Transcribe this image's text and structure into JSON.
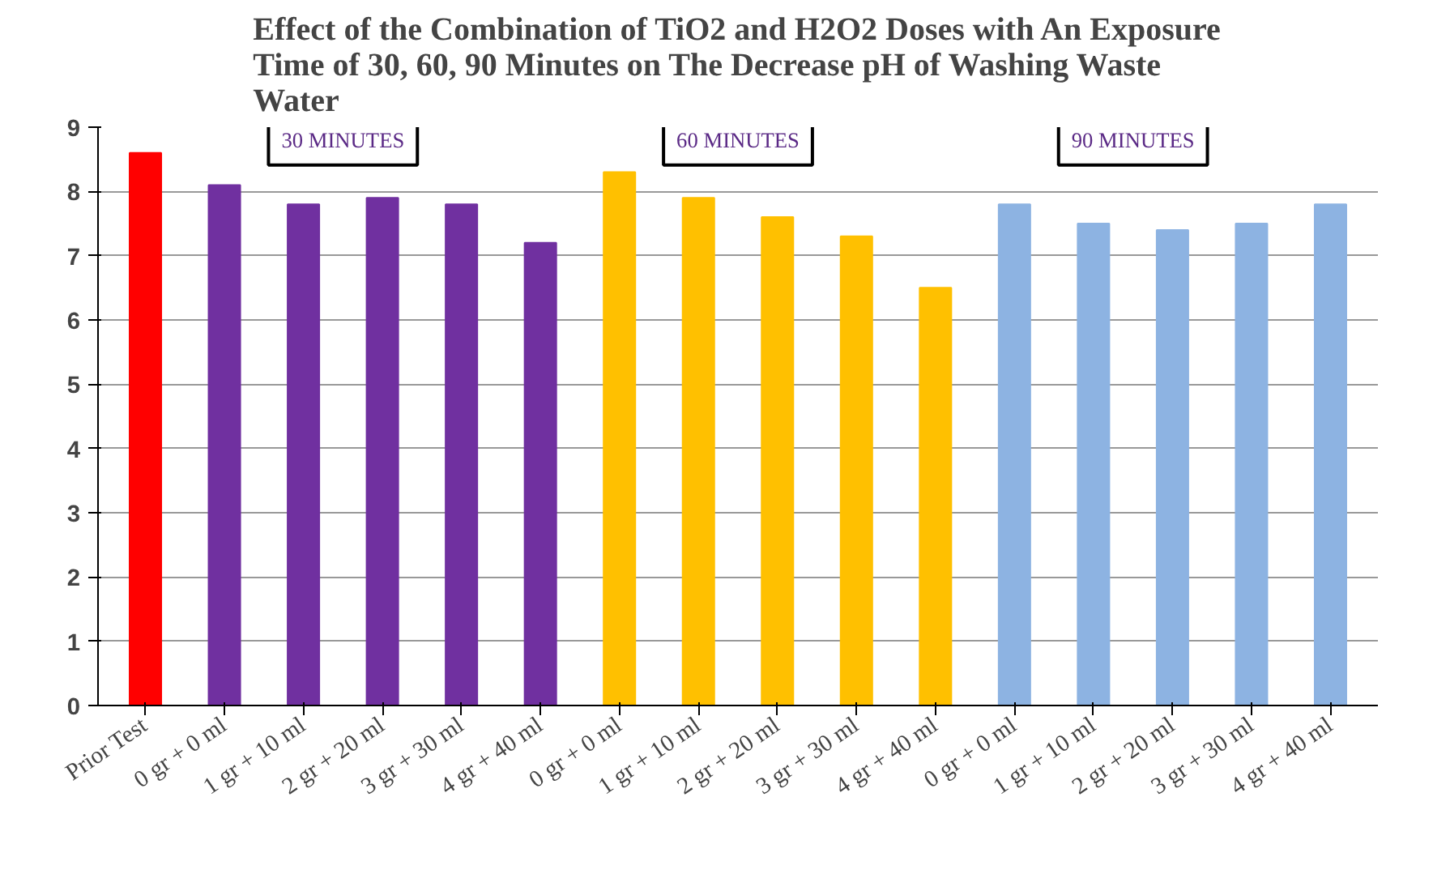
{
  "chart_data": {
    "type": "bar",
    "title": "Effect of the Combination of TiO2 and H2O2 Doses with An Exposure\nTime of 30, 60, 90 Minutes on The Decrease pH of Washing Waste\nWater",
    "categories": [
      "Prior Test",
      "0 gr + 0 ml",
      "1 gr + 10 ml",
      "2 gr + 20 ml",
      "3 gr + 30 ml",
      "4 gr + 40 ml",
      "0 gr + 0 ml",
      "1 gr + 10 ml",
      "2 gr + 20 ml",
      "3 gr + 30 ml",
      "4 gr + 40 ml",
      "0 gr + 0 ml",
      "1 gr + 10 ml",
      "2 gr + 20 ml",
      "3 gr + 30 ml",
      "4 gr + 40 ml"
    ],
    "values": [
      8.6,
      8.1,
      7.8,
      7.9,
      7.8,
      7.2,
      8.3,
      7.9,
      7.6,
      7.3,
      6.5,
      7.8,
      7.5,
      7.4,
      7.5,
      7.8
    ],
    "colors": [
      "#ff0000",
      "#7030a0",
      "#7030a0",
      "#7030a0",
      "#7030a0",
      "#7030a0",
      "#ffc000",
      "#ffc000",
      "#ffc000",
      "#ffc000",
      "#ffc000",
      "#8db3e2",
      "#8db3e2",
      "#8db3e2",
      "#8db3e2",
      "#8db3e2"
    ],
    "ylim": [
      0,
      9
    ],
    "yticks": [
      0,
      1,
      2,
      3,
      4,
      5,
      6,
      7,
      8,
      9
    ],
    "grid": "y",
    "annotations": [
      "30 MINUTES",
      "60 MINUTES",
      "90 MINUTES"
    ]
  }
}
